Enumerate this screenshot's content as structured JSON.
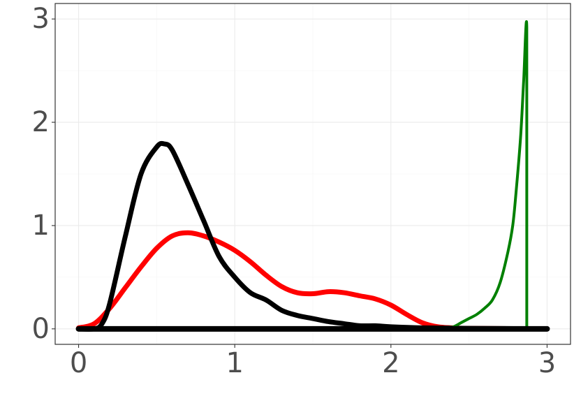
{
  "chart_data": {
    "type": "line",
    "title": "",
    "xlabel": "",
    "ylabel": "",
    "xlim": [
      -0.15,
      3.15
    ],
    "ylim": [
      -0.15,
      3.15
    ],
    "x_ticks": [
      0,
      1,
      2,
      3
    ],
    "x_tick_labels": [
      "0",
      "1",
      "2",
      "3"
    ],
    "y_ticks": [
      0,
      1,
      2,
      3
    ],
    "y_tick_labels": [
      "0",
      "1",
      "2",
      "3"
    ],
    "grid": true,
    "legend": "none",
    "series": [
      {
        "color": "#ff0000",
        "line_width": 7,
        "x": [
          0,
          0.1,
          0.2,
          0.3,
          0.4,
          0.5,
          0.6,
          0.7,
          0.8,
          0.9,
          1.0,
          1.1,
          1.2,
          1.3,
          1.4,
          1.5,
          1.6,
          1.7,
          1.8,
          1.9,
          2.0,
          2.1,
          2.2,
          2.3,
          2.4,
          2.5,
          3.0
        ],
        "y": [
          0.01,
          0.05,
          0.2,
          0.4,
          0.6,
          0.78,
          0.9,
          0.93,
          0.9,
          0.84,
          0.76,
          0.65,
          0.52,
          0.41,
          0.35,
          0.34,
          0.36,
          0.35,
          0.32,
          0.29,
          0.23,
          0.14,
          0.06,
          0.02,
          0.01,
          0.005,
          0
        ]
      },
      {
        "color": "#000000",
        "line_width": 7,
        "x": [
          0,
          0.1,
          0.15,
          0.2,
          0.3,
          0.4,
          0.5,
          0.55,
          0.6,
          0.7,
          0.8,
          0.9,
          1.0,
          1.1,
          1.2,
          1.3,
          1.4,
          1.5,
          1.6,
          1.7,
          1.8,
          1.9,
          2.0,
          2.2,
          2.5,
          3.0
        ],
        "y": [
          0,
          0,
          0.05,
          0.25,
          0.9,
          1.5,
          1.76,
          1.79,
          1.73,
          1.4,
          1.05,
          0.7,
          0.5,
          0.35,
          0.28,
          0.18,
          0.13,
          0.1,
          0.07,
          0.05,
          0.03,
          0.03,
          0.02,
          0.01,
          0.005,
          0
        ]
      },
      {
        "color": "#008000",
        "line_width": 4,
        "x": [
          2.3,
          2.35,
          2.4,
          2.45,
          2.5,
          2.55,
          2.6,
          2.65,
          2.7,
          2.75,
          2.78,
          2.8,
          2.83,
          2.85,
          2.87,
          2.87,
          2.87
        ],
        "y": [
          0,
          0.01,
          0.02,
          0.06,
          0.1,
          0.14,
          0.2,
          0.28,
          0.45,
          0.75,
          1.0,
          1.3,
          1.85,
          2.4,
          2.92,
          1.0,
          0
        ]
      },
      {
        "color": "#000000",
        "line_width": 8,
        "x": [
          0,
          3.0
        ],
        "y": [
          0,
          0
        ]
      }
    ]
  }
}
